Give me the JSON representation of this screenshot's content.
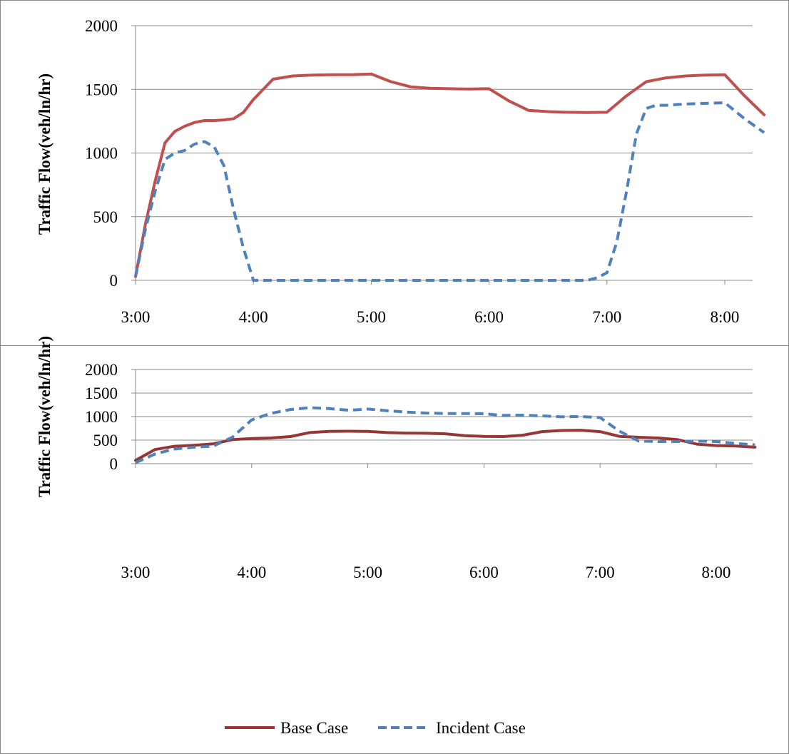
{
  "chart_data": [
    {
      "type": "line",
      "ylabel": "Traffic Flow(veh/ln/hr)",
      "xlabel": "",
      "ylim": [
        0,
        2000
      ],
      "yticks": [
        "0",
        "500",
        "1000",
        "1500",
        "2000"
      ],
      "xticks": [
        "3:00",
        "4:00",
        "5:00",
        "6:00",
        "7:00",
        "8:00"
      ],
      "xlim": [
        "3:00",
        "8:30"
      ],
      "grid": "horizontal",
      "series": [
        {
          "name": "Base Case",
          "color": "#C0504D",
          "dash": "solid",
          "x": [
            "3:00",
            "3:05",
            "3:10",
            "3:15",
            "3:20",
            "3:25",
            "3:30",
            "3:35",
            "3:40",
            "3:45",
            "3:50",
            "3:55",
            "4:00",
            "4:10",
            "4:20",
            "4:30",
            "4:40",
            "4:50",
            "5:00",
            "5:10",
            "5:20",
            "5:30",
            "5:40",
            "5:50",
            "6:00",
            "6:10",
            "6:20",
            "6:30",
            "6:40",
            "6:50",
            "7:00",
            "7:10",
            "7:20",
            "7:30",
            "7:40",
            "7:50",
            "8:00",
            "8:10",
            "8:20"
          ],
          "values": [
            30,
            440,
            780,
            1080,
            1170,
            1210,
            1240,
            1255,
            1255,
            1260,
            1270,
            1320,
            1420,
            1580,
            1605,
            1612,
            1615,
            1615,
            1620,
            1560,
            1520,
            1508,
            1505,
            1503,
            1505,
            1410,
            1335,
            1325,
            1320,
            1318,
            1320,
            1450,
            1560,
            1590,
            1605,
            1612,
            1615,
            1450,
            1300
          ]
        },
        {
          "name": "Incident Case",
          "color": "#4F81BD",
          "dash": "dashed",
          "x": [
            "3:00",
            "3:05",
            "3:10",
            "3:15",
            "3:20",
            "3:25",
            "3:30",
            "3:35",
            "3:40",
            "3:45",
            "3:50",
            "3:55",
            "4:00",
            "6:50",
            "6:55",
            "7:00",
            "7:05",
            "7:10",
            "7:15",
            "7:20",
            "7:25",
            "7:30",
            "7:40",
            "7:50",
            "8:00",
            "8:10",
            "8:20"
          ],
          "values": [
            30,
            400,
            700,
            950,
            1000,
            1020,
            1070,
            1090,
            1050,
            900,
            550,
            250,
            0,
            0,
            20,
            60,
            300,
            700,
            1150,
            1350,
            1375,
            1375,
            1385,
            1390,
            1395,
            1270,
            1160
          ]
        }
      ]
    },
    {
      "type": "line",
      "ylabel": "Traffic Flow(veh/ln/hr)",
      "xlabel": "",
      "ylim": [
        0,
        2000
      ],
      "yticks": [
        "0",
        "500",
        "1000",
        "1500",
        "2000"
      ],
      "xticks": [
        "3:00",
        "4:00",
        "5:00",
        "6:00",
        "7:00",
        "8:00"
      ],
      "xlim": [
        "3:00",
        "8:20"
      ],
      "grid": "horizontal",
      "series": [
        {
          "name": "Base Case",
          "color": "#953735",
          "dash": "solid",
          "x": [
            "3:00",
            "3:10",
            "3:20",
            "3:30",
            "3:40",
            "3:50",
            "4:00",
            "4:10",
            "4:20",
            "4:30",
            "4:40",
            "4:50",
            "5:00",
            "5:10",
            "5:20",
            "5:30",
            "5:40",
            "5:50",
            "6:00",
            "6:10",
            "6:20",
            "6:30",
            "6:40",
            "6:50",
            "7:00",
            "7:10",
            "7:20",
            "7:30",
            "7:40",
            "7:50",
            "8:00",
            "8:10",
            "8:20"
          ],
          "values": [
            70,
            300,
            370,
            390,
            420,
            510,
            535,
            545,
            575,
            660,
            685,
            690,
            685,
            660,
            650,
            645,
            635,
            595,
            580,
            575,
            605,
            680,
            705,
            710,
            680,
            580,
            560,
            545,
            510,
            415,
            385,
            375,
            350
          ]
        },
        {
          "name": "Incident Case",
          "color": "#4F81BD",
          "dash": "dashed",
          "x": [
            "3:00",
            "3:10",
            "3:20",
            "3:30",
            "3:40",
            "3:50",
            "4:00",
            "4:10",
            "4:20",
            "4:30",
            "4:40",
            "4:50",
            "5:00",
            "5:10",
            "5:20",
            "5:30",
            "5:40",
            "5:50",
            "6:00",
            "6:10",
            "6:20",
            "6:30",
            "6:40",
            "6:50",
            "7:00",
            "7:10",
            "7:20",
            "7:30",
            "7:40",
            "7:50",
            "8:00",
            "8:10",
            "8:20"
          ],
          "values": [
            20,
            205,
            310,
            350,
            370,
            560,
            930,
            1070,
            1150,
            1190,
            1170,
            1135,
            1160,
            1125,
            1095,
            1075,
            1065,
            1065,
            1060,
            1025,
            1030,
            1015,
            995,
            1000,
            980,
            690,
            480,
            470,
            470,
            480,
            470,
            430,
            400
          ]
        }
      ]
    }
  ],
  "legend": {
    "items": [
      {
        "label": "Base Case",
        "color": "#953735",
        "dash": "solid"
      },
      {
        "label": "Incident Case",
        "color": "#4F81BD",
        "dash": "dashed"
      }
    ],
    "placement": "bottom"
  }
}
